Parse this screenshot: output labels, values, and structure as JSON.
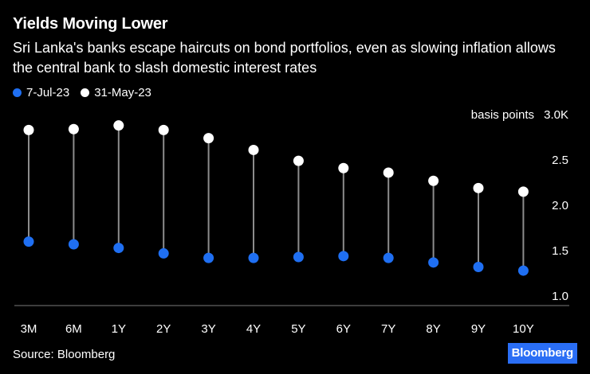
{
  "title": "Yields Moving Lower",
  "subtitle": "Sri Lanka's banks escape haircuts on bond portfolios, even as slowing inflation allows the central bank to slash domestic interest rates",
  "source": "Source: Bloomberg",
  "logo": "Bloomberg",
  "colors": {
    "background": "#000000",
    "series_jul": "#1f6ff2",
    "series_may": "#ffffff",
    "stem": "#8c8c8c",
    "axis": "#7a7a7a",
    "brand": "#2a6ef5"
  },
  "chart_data": {
    "type": "dumbbell",
    "categories": [
      "3M",
      "6M",
      "1Y",
      "2Y",
      "3Y",
      "4Y",
      "5Y",
      "6Y",
      "7Y",
      "8Y",
      "9Y",
      "10Y"
    ],
    "series": [
      {
        "name": "7-Jul-23",
        "color": "#1f6ff2",
        "values": [
          1.6,
          1.57,
          1.53,
          1.47,
          1.42,
          1.42,
          1.43,
          1.44,
          1.42,
          1.37,
          1.32,
          1.28
        ]
      },
      {
        "name": "31-May-23",
        "color": "#ffffff",
        "values": [
          2.83,
          2.84,
          2.88,
          2.83,
          2.74,
          2.61,
          2.49,
          2.41,
          2.36,
          2.27,
          2.19,
          2.15
        ]
      }
    ],
    "unit_label": "basis points",
    "y_ticks": [
      "1.0",
      "1.5",
      "2.0",
      "2.5",
      "3.0K"
    ],
    "y_tick_values": [
      1.0,
      1.5,
      2.0,
      2.5,
      3.0
    ],
    "ylim": [
      1.0,
      3.0
    ],
    "y_axis_side": "right",
    "legend_position": "top-left",
    "grid": false
  }
}
